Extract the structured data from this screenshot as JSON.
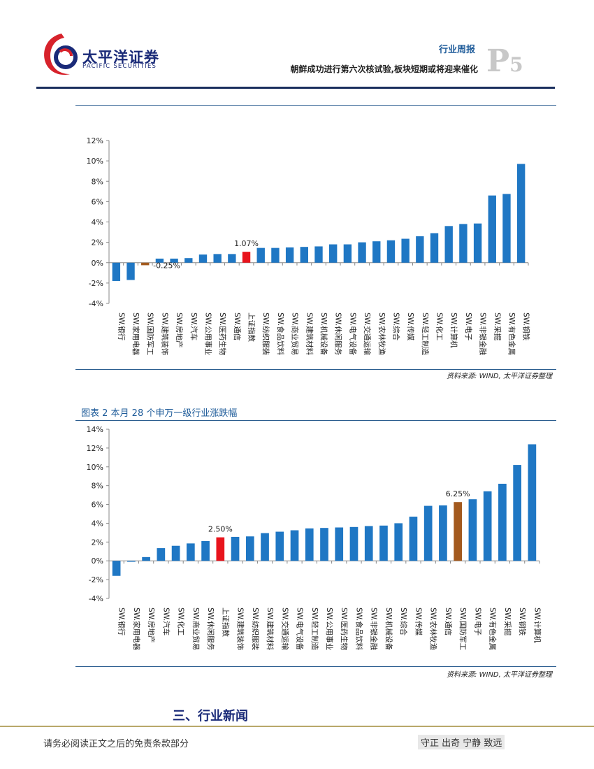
{
  "header": {
    "company_cn": "太平洋证券",
    "company_en": "PACIFIC SECURITIES",
    "report_type": "行业周报",
    "report_title": "朝鲜成功进行第六次核试验,板块短期或将迎来催化",
    "page_letter": "P",
    "page_number": "5"
  },
  "colors": {
    "bar": "#1f77c4",
    "index_bar": "#e8141c",
    "highlight_bar": "#a35a1e",
    "header_blue": "#1a2a78",
    "logo_red": "#d7222b"
  },
  "chart_data": [
    {
      "type": "bar",
      "title": "",
      "ylim": [
        -4,
        12
      ],
      "yticks": [
        "-4%",
        "-2%",
        "0%",
        "2%",
        "4%",
        "6%",
        "8%",
        "10%",
        "12%"
      ],
      "categories": [
        "SW.银行",
        "SW.家用电器",
        "SW.国防军工",
        "SW.建筑装饰",
        "SW.房地产",
        "SW.汽车",
        "SW.公用事业",
        "SW.医药生物",
        "SW.通信",
        "上证指数",
        "SW.纺织服装",
        "SW.食品饮料",
        "SW.商业贸易",
        "SW.建筑材料",
        "SW.机械设备",
        "SW.休闲服务",
        "SW.电气设备",
        "SW.交通运输",
        "SW.农林牧渔",
        "SW.综合",
        "SW.传媒",
        "SW.轻工制造",
        "SW.化工",
        "SW.计算机",
        "SW.电子",
        "SW.非银金融",
        "SW.采掘",
        "SW.有色金属",
        "SW.钢铁"
      ],
      "values": [
        -1.8,
        -1.7,
        -0.25,
        0.4,
        0.4,
        0.45,
        0.8,
        0.85,
        0.85,
        1.07,
        1.45,
        1.45,
        1.5,
        1.55,
        1.6,
        1.8,
        1.8,
        2.0,
        2.1,
        2.2,
        2.35,
        2.6,
        2.9,
        3.6,
        3.8,
        3.85,
        6.6,
        6.75,
        9.7
      ],
      "highlight": {
        "index": 2,
        "label": "-0.25%"
      },
      "index_marker": {
        "index": 9,
        "label": "1.07%"
      },
      "source": "资料来源: WIND, 太平洋证券整理"
    },
    {
      "type": "bar",
      "title": "图表 2 本月 28 个申万一级行业涨跌幅",
      "ylim": [
        -4,
        14
      ],
      "yticks": [
        "-4%",
        "-2%",
        "0%",
        "2%",
        "4%",
        "6%",
        "8%",
        "10%",
        "12%",
        "14%"
      ],
      "categories": [
        "SW.银行",
        "SW.家用电器",
        "SW.房地产",
        "SW.汽车",
        "SW.化工",
        "SW.商业贸易",
        "SW.休闲服务",
        "上证指数",
        "SW.建筑装饰",
        "SW.纺织服装",
        "SW.建筑材料",
        "SW.交通运输",
        "SW.电气设备",
        "SW.轻工制造",
        "SW.公用事业",
        "SW.医药生物",
        "SW.食品饮料",
        "SW.非银金融",
        "SW.机械设备",
        "SW.综合",
        "SW.传媒",
        "SW.农林牧渔",
        "SW.通信",
        "SW.国防军工",
        "SW.电子",
        "SW.有色金属",
        "SW.采掘",
        "SW.钢铁",
        "SW.计算机"
      ],
      "values": [
        -1.6,
        -0.1,
        0.4,
        1.35,
        1.6,
        1.85,
        2.1,
        2.5,
        2.55,
        2.6,
        2.95,
        3.1,
        3.25,
        3.45,
        3.5,
        3.55,
        3.6,
        3.7,
        3.75,
        4.0,
        4.7,
        5.85,
        5.9,
        6.25,
        6.55,
        7.4,
        8.2,
        10.2,
        12.4
      ],
      "highlight": {
        "index": 23,
        "label": "6.25%"
      },
      "index_marker": {
        "index": 7,
        "label": "2.50%"
      },
      "source": "资料来源: WIND, 太平洋证券整理"
    }
  ],
  "section": {
    "title": "三、行业新闻"
  },
  "footer": {
    "disclaimer": "请务必阅读正文之后的免责条款部分",
    "motto": "守正 出奇 宁静 致远"
  }
}
